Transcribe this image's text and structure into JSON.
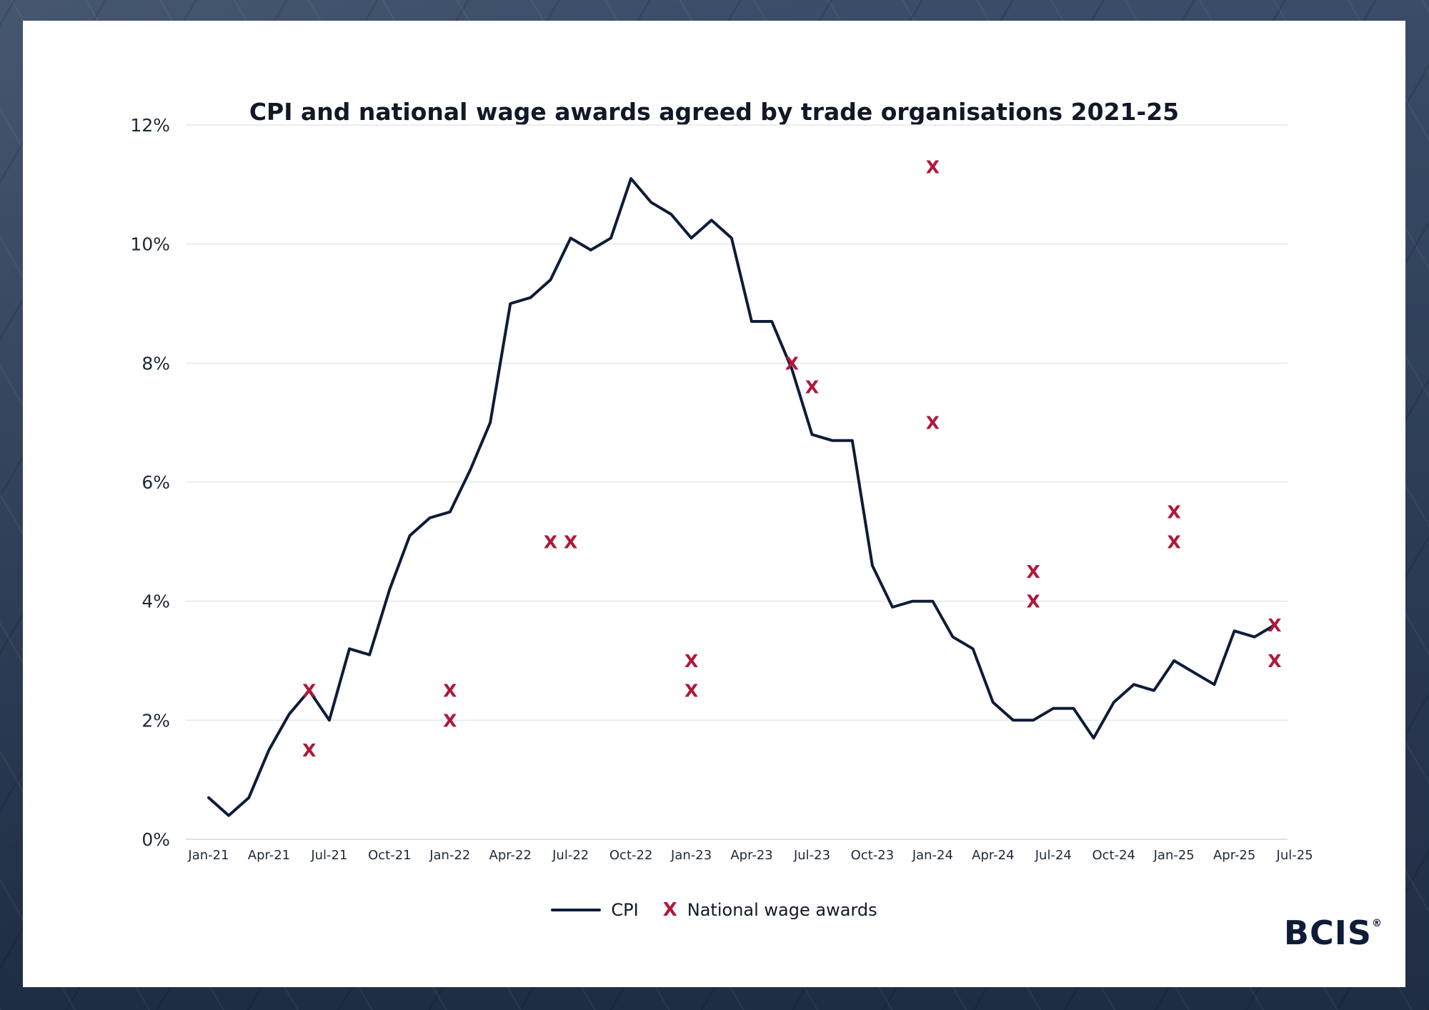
{
  "chart_data": {
    "type": "line",
    "title": "CPI and national wage awards agreed by trade organisations 2021-25",
    "x_tick_labels": [
      "Jan-21",
      "Apr-21",
      "Jul-21",
      "Oct-21",
      "Jan-22",
      "Apr-22",
      "Jul-22",
      "Oct-22",
      "Jan-23",
      "Apr-23",
      "Jul-23",
      "Oct-23",
      "Jan-24",
      "Apr-24",
      "Jul-24",
      "Oct-24",
      "Jan-25",
      "Apr-25",
      "Jul-25"
    ],
    "y_tick_labels": [
      "0%",
      "2%",
      "4%",
      "6%",
      "8%",
      "10%",
      "12%"
    ],
    "ylim": [
      0,
      12
    ],
    "grid": true,
    "legend": "bottom-center",
    "series": [
      {
        "name": "CPI",
        "type": "line",
        "color": "#0d1c38",
        "x": [
          "2021-01",
          "2021-02",
          "2021-03",
          "2021-04",
          "2021-05",
          "2021-06",
          "2021-07",
          "2021-08",
          "2021-09",
          "2021-10",
          "2021-11",
          "2021-12",
          "2022-01",
          "2022-02",
          "2022-03",
          "2022-04",
          "2022-05",
          "2022-06",
          "2022-07",
          "2022-08",
          "2022-09",
          "2022-10",
          "2022-11",
          "2022-12",
          "2023-01",
          "2023-02",
          "2023-03",
          "2023-04",
          "2023-05",
          "2023-06",
          "2023-07",
          "2023-08",
          "2023-09",
          "2023-10",
          "2023-11",
          "2023-12",
          "2024-01",
          "2024-02",
          "2024-03",
          "2024-04",
          "2024-05",
          "2024-06",
          "2024-07",
          "2024-08",
          "2024-09",
          "2024-10",
          "2024-11",
          "2024-12",
          "2025-01",
          "2025-02",
          "2025-03",
          "2025-04",
          "2025-05",
          "2025-06"
        ],
        "y": [
          0.7,
          0.4,
          0.7,
          1.5,
          2.1,
          2.5,
          2.0,
          3.2,
          3.1,
          4.2,
          5.1,
          5.4,
          5.5,
          6.2,
          7.0,
          9.0,
          9.1,
          9.4,
          10.1,
          9.9,
          10.1,
          11.1,
          10.7,
          10.5,
          10.1,
          10.4,
          10.1,
          8.7,
          8.7,
          7.9,
          6.8,
          6.7,
          6.7,
          4.6,
          3.9,
          4.0,
          4.0,
          3.4,
          3.2,
          2.3,
          2.0,
          2.0,
          2.2,
          2.2,
          1.7,
          2.3,
          2.6,
          2.5,
          3.0,
          2.8,
          2.6,
          3.5,
          3.4,
          3.6
        ]
      },
      {
        "name": "National wage awards",
        "type": "scatter",
        "marker": "X",
        "color": "#b0183a",
        "x": [
          "2021-06",
          "2021-06",
          "2022-01",
          "2022-01",
          "2022-06",
          "2022-07",
          "2023-01",
          "2023-01",
          "2023-06",
          "2023-07",
          "2024-01",
          "2024-01",
          "2024-06",
          "2024-06",
          "2025-01",
          "2025-01",
          "2025-06",
          "2025-06"
        ],
        "y": [
          2.5,
          1.5,
          2.5,
          2.0,
          5.0,
          5.0,
          3.0,
          2.5,
          8.0,
          7.6,
          11.3,
          7.0,
          4.5,
          4.0,
          5.5,
          5.0,
          3.6,
          3.0
        ]
      }
    ]
  },
  "legend": {
    "line_label": "CPI",
    "marker_symbol": "X",
    "marker_label": "National wage awards"
  },
  "logo": {
    "text": "BCIS",
    "mark": "®"
  }
}
